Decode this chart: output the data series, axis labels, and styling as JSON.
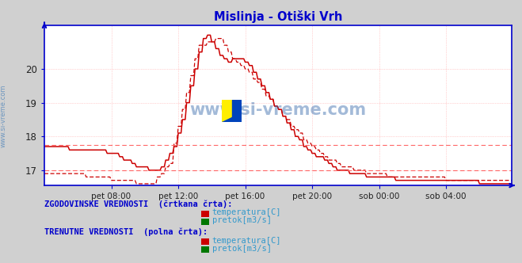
{
  "title": "Mislinja - Otiški Vrh",
  "title_color": "#0000cc",
  "bg_color": "#d0d0d0",
  "plot_bg_color": "#ffffff",
  "axis_color": "#0000cc",
  "grid_color": "#ffaaaa",
  "x_tick_labels": [
    "pet 08:00",
    "pet 12:00",
    "pet 16:00",
    "pet 20:00",
    "sob 00:00",
    "sob 04:00"
  ],
  "x_tick_positions": [
    48,
    96,
    144,
    192,
    240,
    288
  ],
  "ylim": [
    16.55,
    21.3
  ],
  "yticks": [
    17,
    18,
    19,
    20
  ],
  "xlim": [
    0,
    335
  ],
  "n_points": 336,
  "watermark": "www.si-vreme.com",
  "watermark_color": "#3366aa",
  "solid_line_color": "#cc0000",
  "dashed_line_color": "#cc0000",
  "hline_color": "#ff6666",
  "hline_value": 17.75,
  "hline2_value": 17.0,
  "sidebar_text": "www.si-vreme.com",
  "legend1_title": "ZGODOVINSKE VREDNOSTI  (črtkana črta):",
  "legend2_title": "TRENUTNE VREDNOSTI  (polna črta):",
  "legend_temp": "temperatura[C]",
  "legend_flow": "pretok[m3/s]",
  "legend_text_color": "#0000cc",
  "temp_color_hist": "#cc0000",
  "temp_color_curr": "#cc0000",
  "flow_color_hist": "#007700",
  "flow_color_curr": "#007700",
  "logo_yellow": "#ffee00",
  "logo_blue": "#0044bb"
}
